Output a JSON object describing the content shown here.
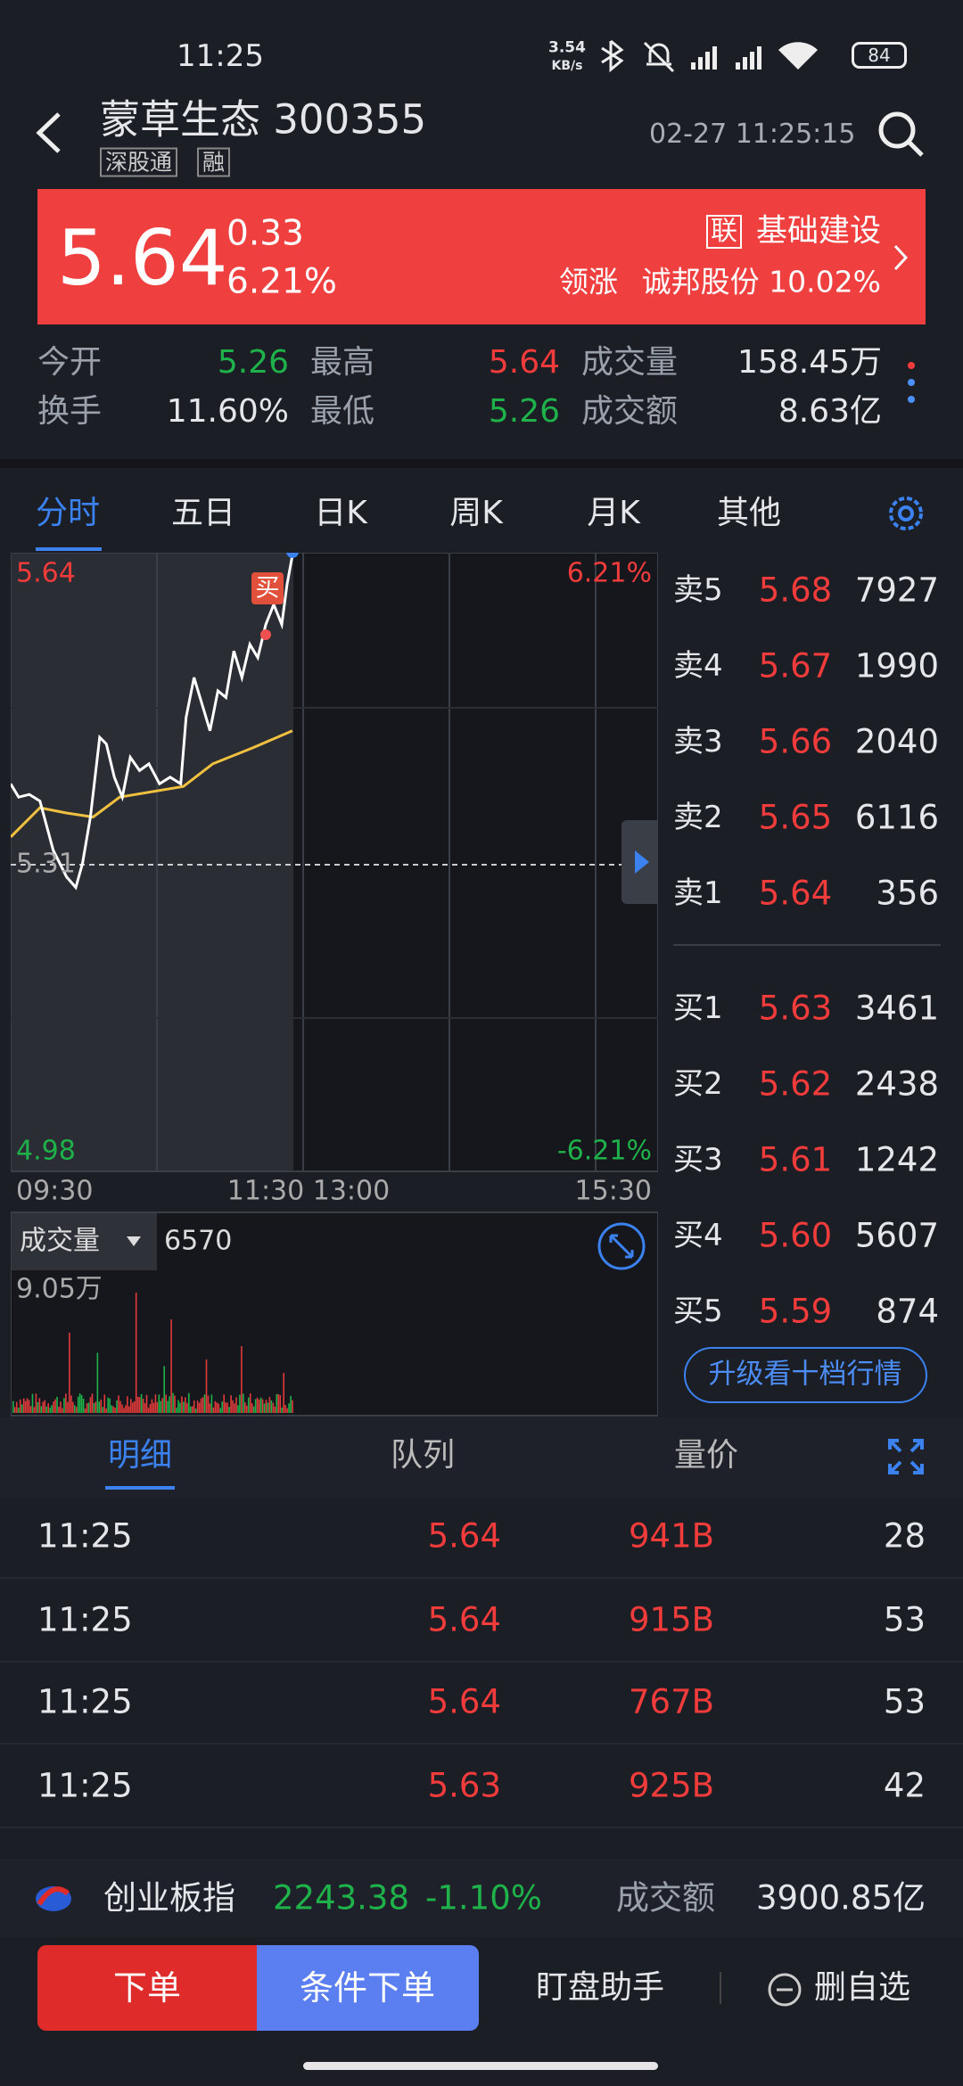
{
  "status": {
    "time": "11:25",
    "speed": "3.54",
    "speed_unit": "KB/s",
    "battery": "84"
  },
  "header": {
    "title": "蒙草生态 300355",
    "tags": [
      "深股通",
      "融"
    ],
    "datetime": "02-27 11:25:15"
  },
  "quote": {
    "price": "5.64",
    "change": "0.33",
    "percent": "6.21%",
    "sector_badge": "联",
    "sector": "基础建设",
    "leader_label": "领涨",
    "leader": "诚邦股份 10.02%"
  },
  "stats": [
    [
      "今开",
      "5.26"
    ],
    [
      "最高",
      "5.64"
    ],
    [
      "成交量",
      "158.45万"
    ],
    [
      "换手",
      "11.60%"
    ],
    [
      "最低",
      "5.26"
    ],
    [
      "成交额",
      "8.63亿"
    ]
  ],
  "tabs": [
    "分时",
    "五日",
    "日K",
    "周K",
    "月K",
    "其他"
  ],
  "chart": {
    "price_high": "5.64",
    "price_mid": "5.31",
    "price_low": "4.98",
    "pct_high": "6.21%",
    "pct_low": "-6.21%",
    "times": [
      "09:30",
      "11:30 13:00",
      "15:30"
    ],
    "buy_marker": "买"
  },
  "volume": {
    "label": "成交量",
    "value": "6570",
    "max": "9.05万"
  },
  "orderbook": {
    "sell": [
      [
        "卖5",
        "5.68",
        "7927"
      ],
      [
        "卖4",
        "5.67",
        "1990"
      ],
      [
        "卖3",
        "5.66",
        "2040"
      ],
      [
        "卖2",
        "5.65",
        "6116"
      ],
      [
        "卖1",
        "5.64",
        "356"
      ]
    ],
    "buy": [
      [
        "买1",
        "5.63",
        "3461"
      ],
      [
        "买2",
        "5.62",
        "2438"
      ],
      [
        "买3",
        "5.61",
        "1242"
      ],
      [
        "买4",
        "5.60",
        "5607"
      ],
      [
        "买5",
        "5.59",
        "874"
      ]
    ],
    "upgrade": "升级看十档行情"
  },
  "detail_tabs": [
    "明细",
    "队列",
    "量价"
  ],
  "trades": [
    [
      "11:25",
      "5.64",
      "941B",
      "28"
    ],
    [
      "11:25",
      "5.64",
      "915B",
      "53"
    ],
    [
      "11:25",
      "5.64",
      "767B",
      "53"
    ],
    [
      "11:25",
      "5.63",
      "925B",
      "42"
    ]
  ],
  "index": {
    "name": "创业板指",
    "value": "2243.38",
    "change": "-1.10%",
    "amount_label": "成交额",
    "amount": "3900.85亿"
  },
  "actions": [
    "下单",
    "条件下单",
    "盯盘助手",
    "删自选"
  ]
}
